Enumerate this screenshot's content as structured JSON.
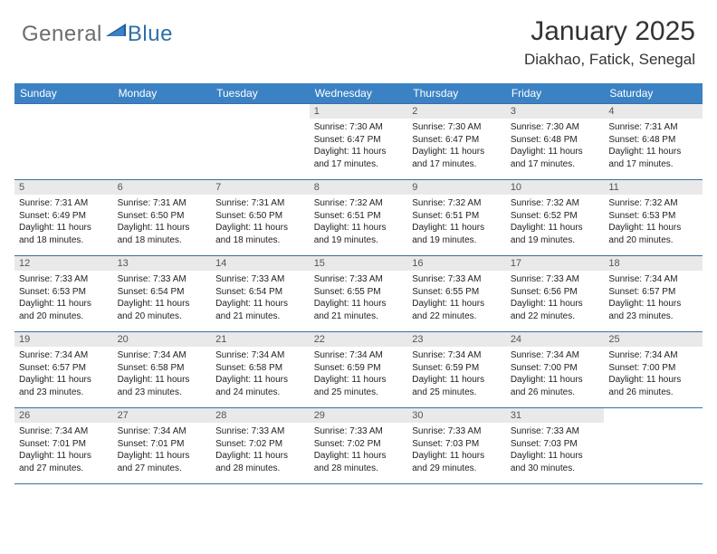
{
  "brand": {
    "general": "General",
    "blue": "Blue"
  },
  "title": "January 2025",
  "location": "Diakhao, Fatick, Senegal",
  "colors": {
    "header_bg": "#3b82c4",
    "header_text": "#ffffff",
    "daynum_bg": "#e9e9e9",
    "daynum_text": "#555555",
    "body_text": "#222222",
    "border": "#3b6fa0",
    "logo_gray": "#6d6d6d",
    "logo_blue": "#2f6fa8",
    "logo_triangle": "#1e5a9c"
  },
  "dayHeaders": [
    "Sunday",
    "Monday",
    "Tuesday",
    "Wednesday",
    "Thursday",
    "Friday",
    "Saturday"
  ],
  "weeks": [
    [
      {
        "num": "",
        "lines": []
      },
      {
        "num": "",
        "lines": []
      },
      {
        "num": "",
        "lines": []
      },
      {
        "num": "1",
        "lines": [
          "Sunrise: 7:30 AM",
          "Sunset: 6:47 PM",
          "Daylight: 11 hours",
          "and 17 minutes."
        ]
      },
      {
        "num": "2",
        "lines": [
          "Sunrise: 7:30 AM",
          "Sunset: 6:47 PM",
          "Daylight: 11 hours",
          "and 17 minutes."
        ]
      },
      {
        "num": "3",
        "lines": [
          "Sunrise: 7:30 AM",
          "Sunset: 6:48 PM",
          "Daylight: 11 hours",
          "and 17 minutes."
        ]
      },
      {
        "num": "4",
        "lines": [
          "Sunrise: 7:31 AM",
          "Sunset: 6:48 PM",
          "Daylight: 11 hours",
          "and 17 minutes."
        ]
      }
    ],
    [
      {
        "num": "5",
        "lines": [
          "Sunrise: 7:31 AM",
          "Sunset: 6:49 PM",
          "Daylight: 11 hours",
          "and 18 minutes."
        ]
      },
      {
        "num": "6",
        "lines": [
          "Sunrise: 7:31 AM",
          "Sunset: 6:50 PM",
          "Daylight: 11 hours",
          "and 18 minutes."
        ]
      },
      {
        "num": "7",
        "lines": [
          "Sunrise: 7:31 AM",
          "Sunset: 6:50 PM",
          "Daylight: 11 hours",
          "and 18 minutes."
        ]
      },
      {
        "num": "8",
        "lines": [
          "Sunrise: 7:32 AM",
          "Sunset: 6:51 PM",
          "Daylight: 11 hours",
          "and 19 minutes."
        ]
      },
      {
        "num": "9",
        "lines": [
          "Sunrise: 7:32 AM",
          "Sunset: 6:51 PM",
          "Daylight: 11 hours",
          "and 19 minutes."
        ]
      },
      {
        "num": "10",
        "lines": [
          "Sunrise: 7:32 AM",
          "Sunset: 6:52 PM",
          "Daylight: 11 hours",
          "and 19 minutes."
        ]
      },
      {
        "num": "11",
        "lines": [
          "Sunrise: 7:32 AM",
          "Sunset: 6:53 PM",
          "Daylight: 11 hours",
          "and 20 minutes."
        ]
      }
    ],
    [
      {
        "num": "12",
        "lines": [
          "Sunrise: 7:33 AM",
          "Sunset: 6:53 PM",
          "Daylight: 11 hours",
          "and 20 minutes."
        ]
      },
      {
        "num": "13",
        "lines": [
          "Sunrise: 7:33 AM",
          "Sunset: 6:54 PM",
          "Daylight: 11 hours",
          "and 20 minutes."
        ]
      },
      {
        "num": "14",
        "lines": [
          "Sunrise: 7:33 AM",
          "Sunset: 6:54 PM",
          "Daylight: 11 hours",
          "and 21 minutes."
        ]
      },
      {
        "num": "15",
        "lines": [
          "Sunrise: 7:33 AM",
          "Sunset: 6:55 PM",
          "Daylight: 11 hours",
          "and 21 minutes."
        ]
      },
      {
        "num": "16",
        "lines": [
          "Sunrise: 7:33 AM",
          "Sunset: 6:55 PM",
          "Daylight: 11 hours",
          "and 22 minutes."
        ]
      },
      {
        "num": "17",
        "lines": [
          "Sunrise: 7:33 AM",
          "Sunset: 6:56 PM",
          "Daylight: 11 hours",
          "and 22 minutes."
        ]
      },
      {
        "num": "18",
        "lines": [
          "Sunrise: 7:34 AM",
          "Sunset: 6:57 PM",
          "Daylight: 11 hours",
          "and 23 minutes."
        ]
      }
    ],
    [
      {
        "num": "19",
        "lines": [
          "Sunrise: 7:34 AM",
          "Sunset: 6:57 PM",
          "Daylight: 11 hours",
          "and 23 minutes."
        ]
      },
      {
        "num": "20",
        "lines": [
          "Sunrise: 7:34 AM",
          "Sunset: 6:58 PM",
          "Daylight: 11 hours",
          "and 23 minutes."
        ]
      },
      {
        "num": "21",
        "lines": [
          "Sunrise: 7:34 AM",
          "Sunset: 6:58 PM",
          "Daylight: 11 hours",
          "and 24 minutes."
        ]
      },
      {
        "num": "22",
        "lines": [
          "Sunrise: 7:34 AM",
          "Sunset: 6:59 PM",
          "Daylight: 11 hours",
          "and 25 minutes."
        ]
      },
      {
        "num": "23",
        "lines": [
          "Sunrise: 7:34 AM",
          "Sunset: 6:59 PM",
          "Daylight: 11 hours",
          "and 25 minutes."
        ]
      },
      {
        "num": "24",
        "lines": [
          "Sunrise: 7:34 AM",
          "Sunset: 7:00 PM",
          "Daylight: 11 hours",
          "and 26 minutes."
        ]
      },
      {
        "num": "25",
        "lines": [
          "Sunrise: 7:34 AM",
          "Sunset: 7:00 PM",
          "Daylight: 11 hours",
          "and 26 minutes."
        ]
      }
    ],
    [
      {
        "num": "26",
        "lines": [
          "Sunrise: 7:34 AM",
          "Sunset: 7:01 PM",
          "Daylight: 11 hours",
          "and 27 minutes."
        ]
      },
      {
        "num": "27",
        "lines": [
          "Sunrise: 7:34 AM",
          "Sunset: 7:01 PM",
          "Daylight: 11 hours",
          "and 27 minutes."
        ]
      },
      {
        "num": "28",
        "lines": [
          "Sunrise: 7:33 AM",
          "Sunset: 7:02 PM",
          "Daylight: 11 hours",
          "and 28 minutes."
        ]
      },
      {
        "num": "29",
        "lines": [
          "Sunrise: 7:33 AM",
          "Sunset: 7:02 PM",
          "Daylight: 11 hours",
          "and 28 minutes."
        ]
      },
      {
        "num": "30",
        "lines": [
          "Sunrise: 7:33 AM",
          "Sunset: 7:03 PM",
          "Daylight: 11 hours",
          "and 29 minutes."
        ]
      },
      {
        "num": "31",
        "lines": [
          "Sunrise: 7:33 AM",
          "Sunset: 7:03 PM",
          "Daylight: 11 hours",
          "and 30 minutes."
        ]
      },
      {
        "num": "",
        "lines": []
      }
    ]
  ]
}
